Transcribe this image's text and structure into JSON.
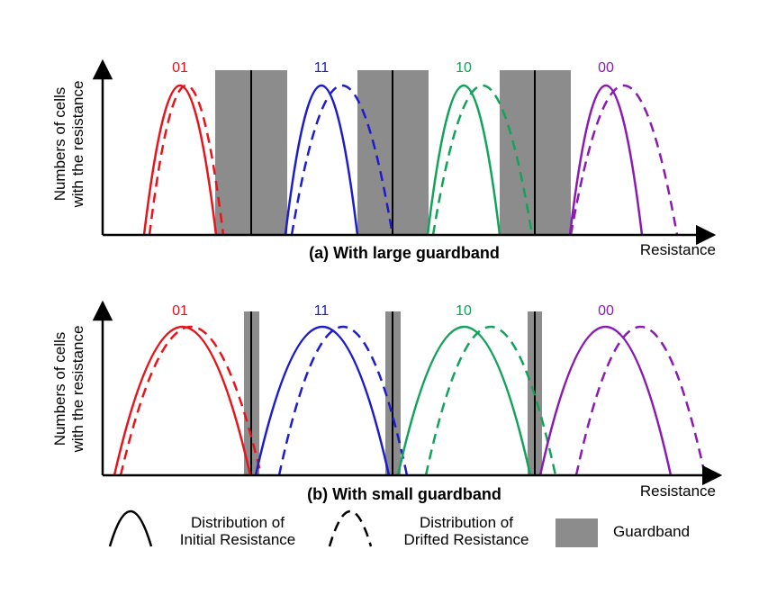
{
  "colors": {
    "red": "#e8141b",
    "blue": "#1c1ccc",
    "green": "#12a35a",
    "purple": "#8b1ab3",
    "guardband": "#8c8c8c"
  },
  "panels": [
    {
      "id": "a",
      "caption": "(a) With large guardband",
      "ylabel_line1": "Numbers of cells",
      "ylabel_line2": "with the resistance",
      "xlabel": "Resistance",
      "states": [
        {
          "label": "01",
          "color": "red"
        },
        {
          "label": "11",
          "color": "blue"
        },
        {
          "label": "10",
          "color": "green"
        },
        {
          "label": "00",
          "color": "purple"
        }
      ]
    },
    {
      "id": "b",
      "caption": "(b) With small guardband",
      "ylabel_line1": "Numbers of cells",
      "ylabel_line2": "with the resistance",
      "xlabel": "Resistance",
      "states": [
        {
          "label": "01",
          "color": "red"
        },
        {
          "label": "11",
          "color": "blue"
        },
        {
          "label": "10",
          "color": "green"
        },
        {
          "label": "00",
          "color": "purple"
        }
      ]
    }
  ],
  "legend": {
    "initial_line1": "Distribution of",
    "initial_line2": "Initial Resistance",
    "drifted_line1": "Distribution of",
    "drifted_line2": "Drifted Resistance",
    "guardband": "Guardband"
  }
}
